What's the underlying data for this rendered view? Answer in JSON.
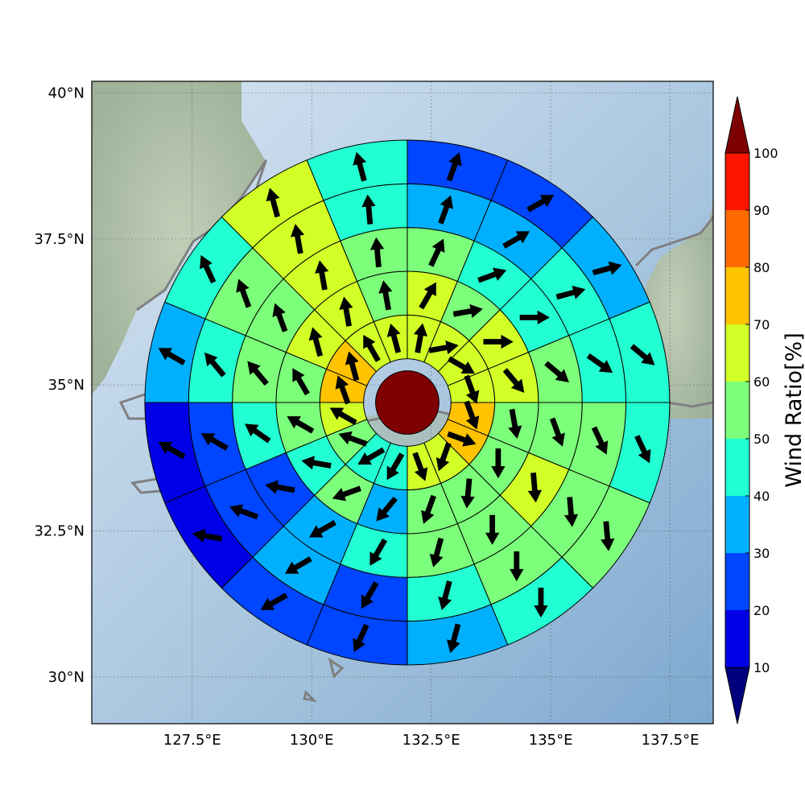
{
  "chart_data": {
    "type": "polar-sector-map",
    "x_axis": {
      "ticks": [
        127.5,
        130,
        132.5,
        135,
        137.5
      ],
      "tick_labels": [
        "127.5°E",
        "130°E",
        "132.5°E",
        "135°E",
        "137.5°E"
      ],
      "range": [
        125.4,
        138.4
      ]
    },
    "y_axis": {
      "ticks": [
        30,
        32.5,
        35,
        37.5,
        40
      ],
      "tick_labels": [
        "30°N",
        "32.5°N",
        "35°N",
        "37.5°N",
        "40°N"
      ],
      "range": [
        29.2,
        40.2
      ]
    },
    "grid": true,
    "center": [
      132.0,
      34.7
    ],
    "ring_radii_km": [
      0,
      100,
      200,
      300,
      400,
      500,
      600
    ],
    "sector_count": 16,
    "sector_start_bearing_deg": 0,
    "ring_values": [
      [
        null
      ],
      [
        60,
        60,
        60,
        60,
        70,
        70,
        60,
        60,
        40,
        40,
        50,
        60,
        70,
        70,
        60,
        60
      ],
      [
        60,
        50,
        60,
        60,
        50,
        50,
        50,
        50,
        30,
        50,
        40,
        50,
        50,
        60,
        60,
        50
      ],
      [
        50,
        40,
        40,
        50,
        50,
        60,
        50,
        50,
        40,
        30,
        20,
        40,
        50,
        50,
        60,
        50
      ],
      [
        30,
        30,
        40,
        40,
        50,
        50,
        50,
        40,
        20,
        30,
        20,
        20,
        40,
        50,
        60,
        40
      ],
      [
        20,
        20,
        30,
        40,
        40,
        50,
        40,
        30,
        20,
        20,
        10,
        10,
        30,
        40,
        60,
        40
      ]
    ],
    "ring_directions_deg": [
      [
        null
      ],
      [
        10,
        80,
        120,
        160,
        160,
        110,
        200,
        160,
        210,
        240,
        290,
        300,
        340,
        345,
        330,
        345
      ],
      [
        30,
        80,
        90,
        140,
        170,
        180,
        185,
        200,
        220,
        250,
        280,
        300,
        330,
        345,
        350,
        350
      ],
      [
        25,
        70,
        90,
        130,
        160,
        175,
        180,
        195,
        210,
        240,
        280,
        305,
        320,
        340,
        350,
        355
      ],
      [
        20,
        60,
        75,
        125,
        155,
        175,
        180,
        195,
        210,
        240,
        290,
        300,
        320,
        340,
        350,
        355
      ],
      [
        20,
        60,
        75,
        130,
        155,
        175,
        180,
        195,
        205,
        240,
        280,
        300,
        300,
        335,
        345,
        345
      ]
    ],
    "center_value": 100,
    "colorbar": {
      "label": "Wind Ratio[%]",
      "ticks": [
        10,
        20,
        30,
        40,
        50,
        60,
        70,
        80,
        90,
        100
      ],
      "tick_labels": [
        "10",
        "20",
        "30",
        "40",
        "50",
        "60",
        "70",
        "80",
        "90",
        "100"
      ],
      "extend": "both",
      "under_color": "#00007f",
      "over_color": "#7f0000",
      "bins": [
        {
          "min": 10,
          "max": 20,
          "color": "#0000e6"
        },
        {
          "min": 20,
          "max": 30,
          "color": "#0045ff"
        },
        {
          "min": 30,
          "max": 40,
          "color": "#00b0ff"
        },
        {
          "min": 40,
          "max": 50,
          "color": "#22ffd2"
        },
        {
          "min": 50,
          "max": 60,
          "color": "#7cff7a"
        },
        {
          "min": 60,
          "max": 70,
          "color": "#d2ff26"
        },
        {
          "min": 70,
          "max": 80,
          "color": "#ffc300"
        },
        {
          "min": 80,
          "max": 90,
          "color": "#ff6a00"
        },
        {
          "min": 90,
          "max": 100,
          "color": "#ff1400"
        }
      ]
    }
  }
}
